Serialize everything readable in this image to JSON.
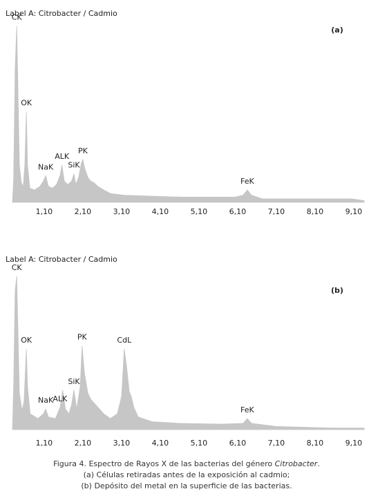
{
  "chart_data": [
    {
      "type": "area",
      "title": "Label A: Citrobacter / Cadmio",
      "panel": "(a)",
      "color": "#c6c6c6",
      "xlim": [
        0.28,
        9.37
      ],
      "ylim": [
        0,
        100
      ],
      "xticks": [
        {
          "value": 1.1,
          "label": "1,10"
        },
        {
          "value": 2.1,
          "label": "2,10"
        },
        {
          "value": 3.1,
          "label": "3,10"
        },
        {
          "value": 4.1,
          "label": "4,10"
        },
        {
          "value": 5.1,
          "label": "5,10"
        },
        {
          "value": 6.1,
          "label": "6,10"
        },
        {
          "value": 7.1,
          "label": "7,10"
        },
        {
          "value": 8.1,
          "label": "8,10"
        },
        {
          "value": 9.1,
          "label": "9,10"
        }
      ],
      "x": [
        0.28,
        0.31,
        0.35,
        0.39,
        0.42,
        0.46,
        0.51,
        0.56,
        0.6,
        0.64,
        0.67,
        0.73,
        0.85,
        0.99,
        1.08,
        1.14,
        1.21,
        1.31,
        1.42,
        1.51,
        1.56,
        1.62,
        1.71,
        1.81,
        1.87,
        1.92,
        1.99,
        2.06,
        2.1,
        2.15,
        2.23,
        2.3,
        2.39,
        2.49,
        2.64,
        2.81,
        3.17,
        3.89,
        4.6,
        5.31,
        6.03,
        6.24,
        6.35,
        6.46,
        6.74,
        7.46,
        8.53,
        9.06,
        9.37
      ],
      "values": [
        0,
        13,
        75,
        99,
        67,
        21,
        11,
        9,
        21,
        51,
        21,
        8,
        7,
        9,
        12,
        15,
        9,
        8,
        10,
        15,
        21,
        12,
        10,
        12,
        16,
        10,
        14,
        22,
        24,
        19,
        14,
        12,
        11,
        9,
        7,
        5,
        4,
        3.5,
        3,
        3,
        3,
        4,
        7,
        4,
        2,
        2,
        2,
        2,
        1
      ],
      "annotations": [
        {
          "text": "CK",
          "x": 0.39
        },
        {
          "text": "OK",
          "x": 0.64
        },
        {
          "text": "NaK",
          "x": 1.14
        },
        {
          "text": "ALK",
          "x": 1.56
        },
        {
          "text": "SiK",
          "x": 1.87
        },
        {
          "text": "PK",
          "x": 2.1
        },
        {
          "text": "FeK",
          "x": 6.35
        }
      ]
    },
    {
      "type": "area",
      "title": "Label A: Citrobacter / Cadmio",
      "panel": "(b)",
      "color": "#c6c6c6",
      "xlim": [
        0.28,
        9.37
      ],
      "ylim": [
        0,
        100
      ],
      "xticks": [
        {
          "value": 1.1,
          "label": "1,10"
        },
        {
          "value": 2.1,
          "label": "2,10"
        },
        {
          "value": 3.1,
          "label": "3,10"
        },
        {
          "value": 4.1,
          "label": "4,10"
        },
        {
          "value": 5.1,
          "label": "5,10"
        },
        {
          "value": 6.1,
          "label": "6,10"
        },
        {
          "value": 7.1,
          "label": "7,10"
        },
        {
          "value": 8.1,
          "label": "8,10"
        },
        {
          "value": 9.1,
          "label": "9,10"
        }
      ],
      "x": [
        0.28,
        0.31,
        0.35,
        0.39,
        0.42,
        0.46,
        0.53,
        0.58,
        0.64,
        0.67,
        0.74,
        0.94,
        1.08,
        1.14,
        1.21,
        1.39,
        1.51,
        1.58,
        1.65,
        1.74,
        1.81,
        1.87,
        1.94,
        2.03,
        2.08,
        2.14,
        2.23,
        2.31,
        2.46,
        2.64,
        2.81,
        2.99,
        3.1,
        3.17,
        3.23,
        3.3,
        3.35,
        3.42,
        3.53,
        3.89,
        4.6,
        5.67,
        6.24,
        6.35,
        6.46,
        7.1,
        8.53,
        9.37
      ],
      "values": [
        0,
        27,
        88,
        97,
        66,
        23,
        12,
        18,
        51,
        27,
        10,
        7,
        10,
        13,
        8,
        7,
        14,
        25,
        13,
        10,
        16,
        25,
        13,
        27,
        53,
        36,
        23,
        19,
        15,
        10,
        7,
        10,
        21,
        51,
        40,
        24,
        21,
        14,
        8,
        5,
        4,
        3.5,
        4,
        7,
        4,
        2,
        1,
        1
      ],
      "annotations": [
        {
          "text": "CK",
          "x": 0.39
        },
        {
          "text": "OK",
          "x": 0.64
        },
        {
          "text": "NaK",
          "x": 1.14
        },
        {
          "text": "ALK",
          "x": 1.51
        },
        {
          "text": "SiK",
          "x": 1.87
        },
        {
          "text": "PK",
          "x": 2.08
        },
        {
          "text": "CdL",
          "x": 3.17
        },
        {
          "text": "FeK",
          "x": 6.35
        }
      ]
    }
  ],
  "caption": [
    [
      "Figura 4. Espectro de Rayos X de las bacterias del género ",
      "Citrobacter",
      "."
    ],
    [
      "(a) Células retiradas antes de la exposición al cadmio;"
    ],
    [
      "(b) Depósito del metal en la superficie de las bacterias."
    ]
  ]
}
